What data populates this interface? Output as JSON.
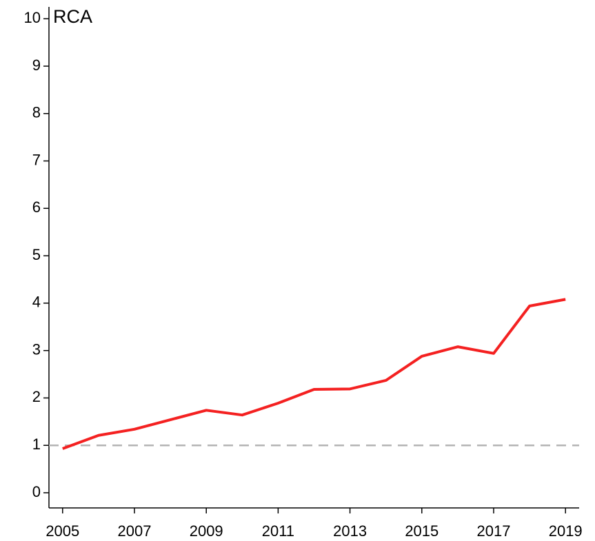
{
  "chart_data": {
    "type": "line",
    "ylabel": "RCA",
    "x": [
      2005,
      2006,
      2007,
      2008,
      2009,
      2010,
      2011,
      2012,
      2013,
      2014,
      2015,
      2016,
      2017,
      2018,
      2019
    ],
    "series": [
      {
        "name": "RCA",
        "color": "#f42121",
        "values": [
          0.93,
          1.21,
          1.34,
          1.54,
          1.74,
          1.64,
          1.89,
          2.18,
          2.19,
          2.37,
          2.88,
          3.08,
          2.94,
          3.94,
          4.08
        ]
      }
    ],
    "xlim": [
      2004.62,
      2019.38
    ],
    "xticks": [
      2005,
      2007,
      2009,
      2011,
      2013,
      2015,
      2017,
      2019
    ],
    "ylim": [
      -0.32,
      10.25
    ],
    "yticks": [
      0,
      1,
      2,
      3,
      4,
      5,
      6,
      7,
      8,
      9,
      10
    ],
    "hline": 1,
    "hline_color": "#b4b4b4"
  }
}
